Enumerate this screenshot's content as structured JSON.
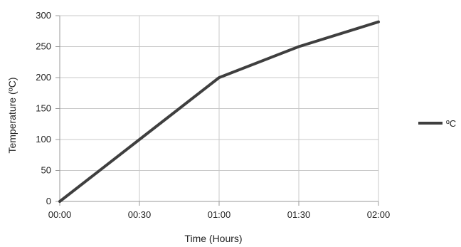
{
  "chart_data": {
    "type": "line",
    "title": "",
    "xlabel": "Time (Hours)",
    "ylabel": "Temperature (ºC)",
    "categories": [
      "00:00",
      "00:30",
      "01:00",
      "01:30",
      "02:00"
    ],
    "x": [
      "00:00",
      "00:30",
      "01:00",
      "01:30",
      "02:00"
    ],
    "series": [
      {
        "name": "ºC",
        "values": [
          0,
          100,
          200,
          250,
          290
        ]
      }
    ],
    "ylim": [
      0,
      300
    ],
    "yticks": [
      0,
      50,
      100,
      150,
      200,
      250,
      300
    ],
    "grid": true,
    "legend": "right",
    "colors": {
      "line": "#3f3f3f",
      "grid": "#c8c8c8",
      "axis": "#999999"
    }
  }
}
